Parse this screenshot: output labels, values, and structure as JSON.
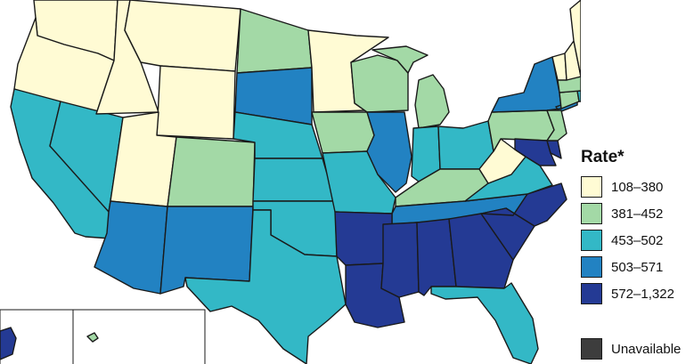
{
  "legend": {
    "title": "Rate*",
    "items": [
      {
        "label": "108–380",
        "color": "#fffbd4"
      },
      {
        "label": "381–452",
        "color": "#a3d9a6"
      },
      {
        "label": "453–502",
        "color": "#33b8c6"
      },
      {
        "label": "503–571",
        "color": "#2282c2"
      },
      {
        "label": "572–1,322",
        "color": "#243a94"
      }
    ],
    "unavailable": {
      "label": "Unavailable",
      "color": "#3d3d3d"
    }
  },
  "bins": {
    "c1": "#fffbd4",
    "c2": "#a3d9a6",
    "c3": "#33b8c6",
    "c4": "#2282c2",
    "c5": "#243a94",
    "na": "#3d3d3d"
  },
  "states": {
    "WA": "c1",
    "OR": "c1",
    "ID": "c1",
    "MT": "c1",
    "WY": "c1",
    "UT": "c1",
    "ND": "c2",
    "MN": "c1",
    "CO": "c2",
    "WI": "c2",
    "MI": "c2",
    "IA": "c2",
    "PA": "c2",
    "KY": "c2",
    "WV": "c1",
    "NJ": "c2",
    "MA": "c2",
    "NH": "c1",
    "VT": "c1",
    "ME": "c1",
    "CT": "c2",
    "RI": "c3",
    "CA": "c3",
    "NV": "c3",
    "NE": "c3",
    "KS": "c3",
    "MO": "c3",
    "IN": "c3",
    "OH": "c3",
    "OK": "c3",
    "TX": "c3",
    "FL": "c3",
    "VA": "c3",
    "SD": "c4",
    "AZ": "c4",
    "NM": "c4",
    "IL": "c4",
    "NY": "c4",
    "TN": "c4",
    "AR": "c5",
    "LA": "c5",
    "MS": "c5",
    "AL": "c5",
    "GA": "c5",
    "SC": "c5",
    "NC": "c5",
    "MD": "c5",
    "DE": "c5",
    "AK": "c5",
    "HI": "c2"
  }
}
